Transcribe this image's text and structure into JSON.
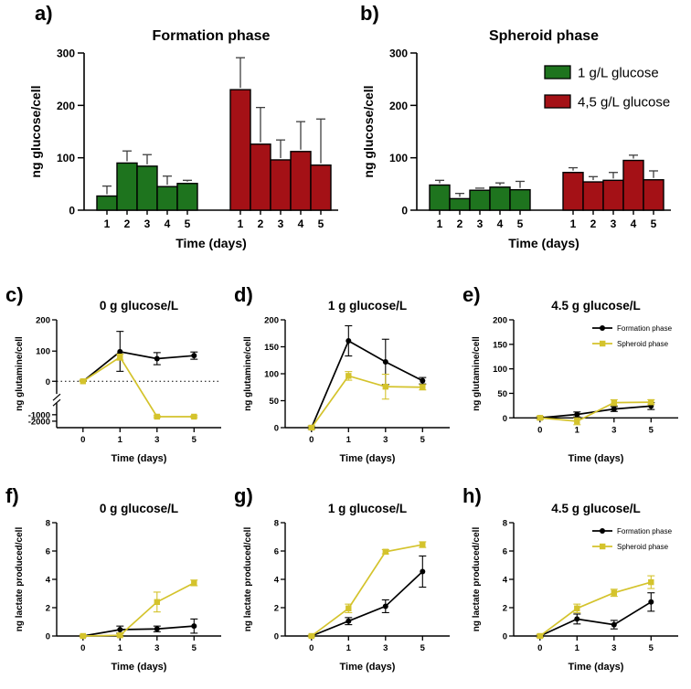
{
  "figure": {
    "background": "#ffffff",
    "colors": {
      "green": "#1e741e",
      "red": "#a41116",
      "yellow": "#d4c32c",
      "black": "#000000",
      "error": "#3f3f3f"
    },
    "bar_legend": {
      "position": "top-right-of-panel-b",
      "items": [
        {
          "label": "1 g/L glucose",
          "color_key": "green"
        },
        {
          "label": "4,5 g/L glucose",
          "color_key": "red"
        }
      ]
    },
    "line_legend": {
      "position": "top-right-of-panels-e-and-h",
      "items": [
        {
          "label": "Formation phase",
          "color_key": "black",
          "marker": "circle"
        },
        {
          "label": "Spheroid phase",
          "color_key": "yellow",
          "marker": "square"
        }
      ]
    }
  },
  "chart_data": [
    {
      "panel": "a)",
      "type": "bar",
      "title": "Formation phase",
      "xlabel": "Time (days)",
      "ylabel": "ng glucose/cell",
      "ylim": [
        0,
        300
      ],
      "yticks": [
        0,
        100,
        200,
        300
      ],
      "categories": [
        "1",
        "2",
        "3",
        "4",
        "5"
      ],
      "legend": false,
      "series": [
        {
          "name": "1 g/L glucose",
          "color": "green",
          "values": [
            27,
            90,
            84,
            45,
            51
          ],
          "errors": [
            19,
            23,
            22,
            20,
            6
          ]
        },
        {
          "name": "4,5 g/L glucose",
          "color": "red",
          "values": [
            230,
            126,
            96,
            112,
            86
          ],
          "errors": [
            61,
            70,
            38,
            57,
            88
          ]
        }
      ]
    },
    {
      "panel": "b)",
      "type": "bar",
      "title": "Spheroid phase",
      "xlabel": "Time (days)",
      "ylabel": "ng glucose/cell",
      "ylim": [
        0,
        300
      ],
      "yticks": [
        0,
        100,
        200,
        300
      ],
      "categories": [
        "1",
        "2",
        "3",
        "4",
        "5"
      ],
      "legend": true,
      "series": [
        {
          "name": "1 g/L glucose",
          "color": "green",
          "values": [
            48,
            22,
            38,
            44,
            39
          ],
          "errors": [
            9,
            10,
            4,
            8,
            16
          ]
        },
        {
          "name": "4,5 g/L glucose",
          "color": "red",
          "values": [
            72,
            54,
            57,
            95,
            58
          ],
          "errors": [
            9,
            10,
            15,
            10,
            17
          ]
        }
      ]
    },
    {
      "panel": "c)",
      "type": "line",
      "title": "0 g glucose/L",
      "xlabel": "Time (days)",
      "ylabel": "ng glutamine/cell",
      "x": [
        0,
        1,
        3,
        5
      ],
      "broken_axis": true,
      "yticks": [
        200,
        100,
        0,
        -1000,
        -2000
      ],
      "ymap": [
        [
          200,
          0
        ],
        [
          100,
          0.29
        ],
        [
          0,
          0.57
        ],
        [
          -1000,
          0.88
        ],
        [
          -2000,
          0.94
        ],
        [
          -2400,
          1
        ]
      ],
      "zero_dotted_line": true,
      "legend": false,
      "series": [
        {
          "name": "Formation phase",
          "color": "black",
          "marker": "circle",
          "values": [
            0,
            98,
            75,
            85
          ],
          "errors": [
            3,
            65,
            20,
            12
          ]
        },
        {
          "name": "Spheroid phase",
          "color": "yellow",
          "marker": "square",
          "values": [
            0,
            80,
            -1300,
            -1300
          ],
          "errors": [
            3,
            10,
            150,
            150
          ]
        }
      ]
    },
    {
      "panel": "d)",
      "type": "line",
      "title": "1 g glucose/L",
      "xlabel": "Time (days)",
      "ylabel": "ng glutamine/cell",
      "x": [
        0,
        1,
        3,
        5
      ],
      "ylim": [
        0,
        200
      ],
      "yticks": [
        0,
        50,
        100,
        150,
        200
      ],
      "legend": false,
      "series": [
        {
          "name": "Formation phase",
          "color": "black",
          "marker": "circle",
          "values": [
            0,
            161,
            122,
            87
          ],
          "errors": [
            3,
            28,
            42,
            6
          ]
        },
        {
          "name": "Spheroid phase",
          "color": "yellow",
          "marker": "square",
          "values": [
            0,
            96,
            76,
            75
          ],
          "errors": [
            3,
            8,
            23,
            5
          ]
        }
      ]
    },
    {
      "panel": "e)",
      "type": "line",
      "title": "4.5 g glucose/L",
      "xlabel": "Time (days)",
      "ylabel": "ng glutamine/cell",
      "x": [
        0,
        1,
        3,
        5
      ],
      "ylim": [
        -20,
        200
      ],
      "yticks": [
        0,
        50,
        100,
        150,
        200
      ],
      "legend": true,
      "series": [
        {
          "name": "Formation phase",
          "color": "black",
          "marker": "circle",
          "values": [
            0,
            7,
            18,
            24
          ],
          "errors": [
            3,
            5,
            5,
            7
          ]
        },
        {
          "name": "Spheroid phase",
          "color": "yellow",
          "marker": "square",
          "values": [
            0,
            -7,
            31,
            32
          ],
          "errors": [
            3,
            7,
            6,
            5
          ]
        }
      ]
    },
    {
      "panel": "f)",
      "type": "line",
      "title": "0 g glucose/L",
      "xlabel": "Time (days)",
      "ylabel": "ng lactate produced/cell",
      "x": [
        0,
        1,
        3,
        5
      ],
      "ylim": [
        0,
        8
      ],
      "yticks": [
        0,
        2,
        4,
        6,
        8
      ],
      "legend": false,
      "series": [
        {
          "name": "Formation phase",
          "color": "black",
          "marker": "circle",
          "values": [
            0,
            0.45,
            0.5,
            0.7
          ],
          "errors": [
            0.05,
            0.25,
            0.2,
            0.5
          ]
        },
        {
          "name": "Spheroid phase",
          "color": "yellow",
          "marker": "square",
          "values": [
            0,
            0.05,
            2.4,
            3.75
          ],
          "errors": [
            0.05,
            0.1,
            0.7,
            0.2
          ]
        }
      ]
    },
    {
      "panel": "g)",
      "type": "line",
      "title": "1 g glucose/L",
      "xlabel": "Time (days)",
      "ylabel": "ng lactate produced/cell",
      "x": [
        0,
        1,
        3,
        5
      ],
      "ylim": [
        0,
        8
      ],
      "yticks": [
        0,
        2,
        4,
        6,
        8
      ],
      "legend": false,
      "series": [
        {
          "name": "Formation phase",
          "color": "black",
          "marker": "circle",
          "values": [
            0,
            1.05,
            2.1,
            4.55
          ],
          "errors": [
            0.05,
            0.25,
            0.45,
            1.1
          ]
        },
        {
          "name": "Spheroid phase",
          "color": "yellow",
          "marker": "square",
          "values": [
            0,
            1.95,
            5.95,
            6.45
          ],
          "errors": [
            0.05,
            0.3,
            0.15,
            0.2
          ]
        }
      ]
    },
    {
      "panel": "h)",
      "type": "line",
      "title": "4.5 g glucose/L",
      "xlabel": "Time (days)",
      "ylabel": "ng lactate produced/cell",
      "x": [
        0,
        1,
        3,
        5
      ],
      "ylim": [
        0,
        8
      ],
      "yticks": [
        0,
        2,
        4,
        6,
        8
      ],
      "legend": true,
      "series": [
        {
          "name": "Formation phase",
          "color": "black",
          "marker": "circle",
          "values": [
            0,
            1.2,
            0.8,
            2.4
          ],
          "errors": [
            0.1,
            0.35,
            0.3,
            0.65
          ]
        },
        {
          "name": "Spheroid phase",
          "color": "yellow",
          "marker": "square",
          "values": [
            0,
            1.95,
            3.05,
            3.8
          ],
          "errors": [
            0.1,
            0.3,
            0.25,
            0.45
          ]
        }
      ]
    }
  ]
}
